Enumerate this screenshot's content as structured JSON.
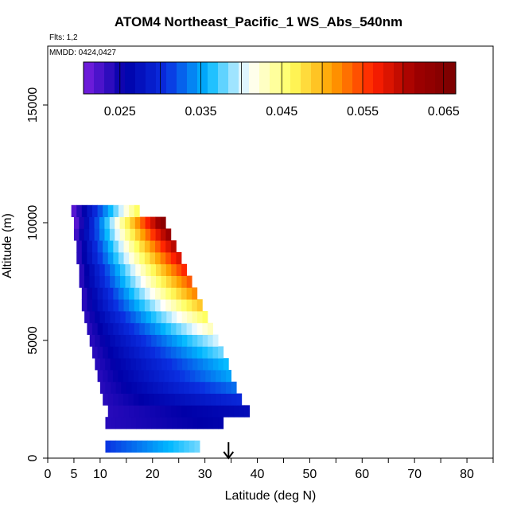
{
  "chart_data": {
    "type": "heatmap",
    "title": "ATOM4 Northeast_Pacific_1 WS_Abs_540nm",
    "flights_note": "Flts: 1,2",
    "mmdd_note": "MMDD: 0424,0427",
    "xlabel": "Latitude (deg N)",
    "ylabel": "Altitude (m)",
    "xlim": [
      0,
      85
    ],
    "ylim": [
      0,
      17500
    ],
    "xticks": [
      0,
      5,
      10,
      20,
      30,
      40,
      50,
      60,
      70,
      80
    ],
    "xtick_labels": [
      "0",
      "5",
      "10",
      "20",
      "30",
      "40",
      "50",
      "60",
      "70",
      "80"
    ],
    "xminor": [
      15,
      25,
      35,
      45,
      55,
      65,
      75,
      85
    ],
    "yticks": [
      0,
      5000,
      10000,
      15000
    ],
    "ytick_labels": [
      "0",
      "5000",
      "10000",
      "15000"
    ],
    "colorbar": {
      "min": 0.0205,
      "max": 0.0665,
      "ticks": [
        0.025,
        0.035,
        0.045,
        0.055,
        0.065
      ],
      "tick_labels": [
        "0.025",
        "0.035",
        "0.045",
        "0.055",
        "0.065"
      ],
      "colors": [
        "#7a1fe0",
        "#0000a8",
        "#0a2ee0",
        "#00b8ff",
        "#ffffff",
        "#ffff60",
        "#ffa000",
        "#ff2000",
        "#a00000",
        "#7a0000"
      ]
    },
    "arrow_latitude": 34.5,
    "rows": [
      {
        "alt": 500,
        "lat_min": 11,
        "lat_max": 29,
        "value_min": 0.031,
        "value_max": 0.038
      },
      {
        "alt": 1500,
        "lat_min": 11,
        "lat_max": 33.5,
        "value_min": 0.024,
        "value_max": 0.026
      },
      {
        "alt": 2000,
        "lat_min": 11.5,
        "lat_max": 38.5,
        "value_min": 0.024,
        "value_max": 0.027
      },
      {
        "alt": 2500,
        "lat_min": 10.5,
        "lat_max": 37,
        "value_min": 0.024,
        "value_max": 0.03
      },
      {
        "alt": 3000,
        "lat_min": 10,
        "lat_max": 36,
        "value_min": 0.024,
        "value_max": 0.033
      },
      {
        "alt": 3500,
        "lat_min": 9.5,
        "lat_max": 35,
        "value_min": 0.024,
        "value_max": 0.035
      },
      {
        "alt": 4000,
        "lat_min": 9,
        "lat_max": 34.5,
        "value_min": 0.024,
        "value_max": 0.036
      },
      {
        "alt": 4500,
        "lat_min": 8.5,
        "lat_max": 33.5,
        "value_min": 0.024,
        "value_max": 0.038
      },
      {
        "alt": 5000,
        "lat_min": 8,
        "lat_max": 32.5,
        "value_min": 0.024,
        "value_max": 0.04
      },
      {
        "alt": 5500,
        "lat_min": 7.5,
        "lat_max": 31.5,
        "value_min": 0.024,
        "value_max": 0.043
      },
      {
        "alt": 6000,
        "lat_min": 7,
        "lat_max": 30.5,
        "value_min": 0.024,
        "value_max": 0.046
      },
      {
        "alt": 6500,
        "lat_min": 6.5,
        "lat_max": 29.5,
        "value_min": 0.024,
        "value_max": 0.049
      },
      {
        "alt": 7000,
        "lat_min": 6.5,
        "lat_max": 28.5,
        "value_min": 0.024,
        "value_max": 0.052
      },
      {
        "alt": 7500,
        "lat_min": 6,
        "lat_max": 27.5,
        "value_min": 0.024,
        "value_max": 0.054
      },
      {
        "alt": 8000,
        "lat_min": 6,
        "lat_max": 26.5,
        "value_min": 0.024,
        "value_max": 0.056
      },
      {
        "alt": 8500,
        "lat_min": 5.5,
        "lat_max": 25.5,
        "value_min": 0.024,
        "value_max": 0.058
      },
      {
        "alt": 9000,
        "lat_min": 5.5,
        "lat_max": 24.5,
        "value_min": 0.024,
        "value_max": 0.06
      },
      {
        "alt": 9500,
        "lat_min": 5,
        "lat_max": 23.5,
        "value_min": 0.023,
        "value_max": 0.062
      },
      {
        "alt": 10000,
        "lat_min": 5,
        "lat_max": 22.5,
        "value_min": 0.022,
        "value_max": 0.064
      },
      {
        "alt": 10500,
        "lat_min": 4.5,
        "lat_max": 17.5,
        "value_min": 0.022,
        "value_max": 0.046
      }
    ]
  }
}
